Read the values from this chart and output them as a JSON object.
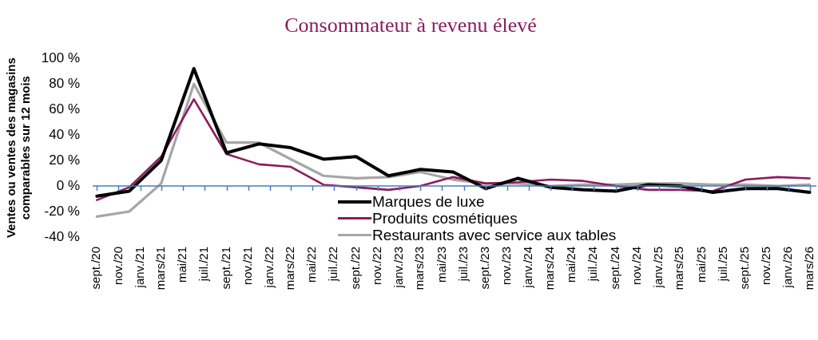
{
  "chart_data": {
    "type": "line",
    "title": "Consommateur à revenu élevé",
    "ylabel": "Ventes ou ventes des magasins comparables sur 12 mois",
    "x": [
      "2020-09",
      "2020-12",
      "2021-03",
      "2021-06",
      "2021-09",
      "2021-12",
      "2022-03",
      "2022-06",
      "2022-09",
      "2022-12",
      "2023-03",
      "2023-06",
      "2023-09",
      "2023-12",
      "2024-03",
      "2024-06",
      "2024-09",
      "2024-12",
      "2025-03",
      "2025-06",
      "2025-09",
      "2025-12",
      "2026-03"
    ],
    "xlim": [
      "2020-08-20",
      "2026-03-20"
    ],
    "xticks": [
      {
        "value": "2020-09",
        "label": "sept./20"
      },
      {
        "value": "2020-11",
        "label": "nov./20"
      },
      {
        "value": "2021-01",
        "label": "janv./21"
      },
      {
        "value": "2021-03",
        "label": "mars/21"
      },
      {
        "value": "2021-05",
        "label": "mai/21"
      },
      {
        "value": "2021-07",
        "label": "juil./21"
      },
      {
        "value": "2021-09",
        "label": "sept./21"
      },
      {
        "value": "2021-11",
        "label": "nov./21"
      },
      {
        "value": "2022-01",
        "label": "janv./22"
      },
      {
        "value": "2022-03",
        "label": "mars/22"
      },
      {
        "value": "2022-05",
        "label": "mai/22"
      },
      {
        "value": "2022-07",
        "label": "juil./22"
      },
      {
        "value": "2022-09",
        "label": "sept./22"
      },
      {
        "value": "2022-11",
        "label": "nov./22"
      },
      {
        "value": "2023-01",
        "label": "janv./23"
      },
      {
        "value": "2023-03",
        "label": "mars/23"
      },
      {
        "value": "2023-05",
        "label": "mai/23"
      },
      {
        "value": "2023-07",
        "label": "juil./23"
      },
      {
        "value": "2023-09",
        "label": "sept./23"
      },
      {
        "value": "2023-11",
        "label": "nov./23"
      },
      {
        "value": "2024-01",
        "label": "janv./24"
      },
      {
        "value": "2024-03",
        "label": "mars/24"
      },
      {
        "value": "2024-05",
        "label": "mai/24"
      },
      {
        "value": "2024-07",
        "label": "juil./24"
      },
      {
        "value": "2024-09",
        "label": "sept./24"
      },
      {
        "value": "2024-11",
        "label": "nov./24"
      },
      {
        "value": "2025-01",
        "label": "janv./25"
      },
      {
        "value": "2025-03",
        "label": "mars/25"
      },
      {
        "value": "2025-05",
        "label": "mai/25"
      },
      {
        "value": "2025-07",
        "label": "juil./25"
      },
      {
        "value": "2025-09",
        "label": "sept./25"
      },
      {
        "value": "2025-11",
        "label": "nov./25"
      },
      {
        "value": "2026-01",
        "label": "janv./26"
      },
      {
        "value": "2026-03",
        "label": "mars/26"
      }
    ],
    "ylim": [
      -40,
      100
    ],
    "yticks": [
      {
        "value": -40,
        "label": "-40 %"
      },
      {
        "value": -20,
        "label": "-20 %"
      },
      {
        "value": 0,
        "label": "0 %"
      },
      {
        "value": 20,
        "label": "20 %"
      },
      {
        "value": 40,
        "label": "40 %"
      },
      {
        "value": 60,
        "label": "60 %"
      },
      {
        "value": 80,
        "label": "80 %"
      },
      {
        "value": 100,
        "label": "100 %"
      }
    ],
    "grid": false,
    "legend": "bottom",
    "ref_lines": [
      {
        "axis": "y",
        "value": 0,
        "color": "#4a7ebb"
      }
    ],
    "series": [
      {
        "name": "Marques de luxe",
        "color": "#000000",
        "values": [
          -8,
          -4,
          20,
          92,
          26,
          33,
          30,
          21,
          23,
          8,
          13,
          11,
          -2,
          6,
          -1,
          -3,
          -4,
          1,
          0,
          -5,
          -2,
          -2,
          -5
        ]
      },
      {
        "name": "Produits cosmétiques",
        "color": "#8b1c5e",
        "values": [
          -11,
          -1,
          23,
          68,
          25,
          17,
          15,
          1,
          -1,
          -3,
          0,
          7,
          2,
          3,
          5,
          4,
          0,
          -3,
          -3,
          -4,
          5,
          7,
          6
        ]
      },
      {
        "name": "Restaurants avec service aux tables",
        "color": "#a6a6a6",
        "values": [
          -24,
          -20,
          2,
          80,
          34,
          34,
          21,
          8,
          6,
          7,
          11,
          5,
          2,
          2,
          0,
          1,
          1,
          2,
          2,
          1,
          1,
          0,
          1
        ]
      }
    ]
  }
}
